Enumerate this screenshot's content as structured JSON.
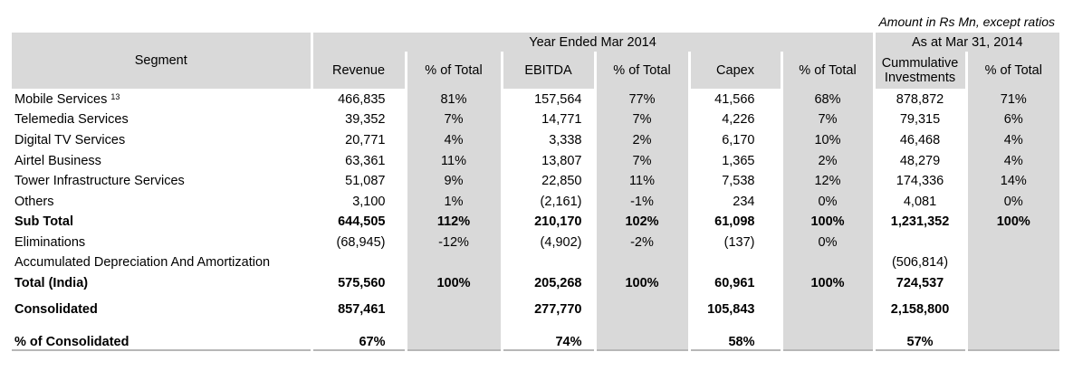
{
  "note": "Amount in Rs Mn, except ratios",
  "headers": {
    "segment": "Segment",
    "group1": "Year Ended Mar 2014",
    "group2": "As at Mar 31, 2014",
    "revenue": "Revenue",
    "pct1": "% of Total",
    "ebitda": "EBITDA",
    "pct2": "% of Total",
    "capex": "Capex",
    "pct3": "% of Total",
    "invest": "Cummulative Investments",
    "pct4": "% of Total"
  },
  "rows": [
    {
      "segment": "Mobile Services",
      "sup": "13",
      "revenue": "466,835",
      "rev_pct": "81%",
      "ebitda": "157,564",
      "ebitda_pct": "77%",
      "capex": "41,566",
      "capex_pct": "68%",
      "invest": "878,872",
      "invest_pct": "71%"
    },
    {
      "segment": "Telemedia Services",
      "revenue": "39,352",
      "rev_pct": "7%",
      "ebitda": "14,771",
      "ebitda_pct": "7%",
      "capex": "4,226",
      "capex_pct": "7%",
      "invest": "79,315",
      "invest_pct": "6%"
    },
    {
      "segment": "Digital TV Services",
      "revenue": "20,771",
      "rev_pct": "4%",
      "ebitda": "3,338",
      "ebitda_pct": "2%",
      "capex": "6,170",
      "capex_pct": "10%",
      "invest": "46,468",
      "invest_pct": "4%"
    },
    {
      "segment": "Airtel Business",
      "revenue": "63,361",
      "rev_pct": "11%",
      "ebitda": "13,807",
      "ebitda_pct": "7%",
      "capex": "1,365",
      "capex_pct": "2%",
      "invest": "48,279",
      "invest_pct": "4%"
    },
    {
      "segment": "Tower Infrastructure Services",
      "revenue": "51,087",
      "rev_pct": "9%",
      "ebitda": "22,850",
      "ebitda_pct": "11%",
      "capex": "7,538",
      "capex_pct": "12%",
      "invest": "174,336",
      "invest_pct": "14%"
    },
    {
      "segment": "Others",
      "revenue": "3,100",
      "rev_pct": "1%",
      "ebitda": "(2,161)",
      "ebitda_pct": "-1%",
      "capex": "234",
      "capex_pct": "0%",
      "invest": "4,081",
      "invest_pct": "0%"
    },
    {
      "segment": "Sub Total",
      "revenue": "644,505",
      "rev_pct": "112%",
      "ebitda": "210,170",
      "ebitda_pct": "102%",
      "capex": "61,098",
      "capex_pct": "100%",
      "invest": "1,231,352",
      "invest_pct": "100%"
    },
    {
      "segment": "Eliminations",
      "revenue": "(68,945)",
      "rev_pct": "-12%",
      "ebitda": "(4,902)",
      "ebitda_pct": "-2%",
      "capex": "(137)",
      "capex_pct": "0%",
      "invest": "",
      "invest_pct": ""
    },
    {
      "segment": "Accumulated Depreciation And Amortization",
      "revenue": "",
      "rev_pct": "",
      "ebitda": "",
      "ebitda_pct": "",
      "capex": "",
      "capex_pct": "",
      "invest": "(506,814)",
      "invest_pct": ""
    },
    {
      "segment": "Total (India)",
      "revenue": "575,560",
      "rev_pct": "100%",
      "ebitda": "205,268",
      "ebitda_pct": "100%",
      "capex": "60,961",
      "capex_pct": "100%",
      "invest": "724,537",
      "invest_pct": ""
    },
    {
      "segment": "Consolidated",
      "revenue": "857,461",
      "rev_pct": "",
      "ebitda": "277,770",
      "ebitda_pct": "",
      "capex": "105,843",
      "capex_pct": "",
      "invest": "2,158,800",
      "invest_pct": ""
    },
    {
      "segment": "% of Consolidated",
      "revenue": "67%",
      "rev_pct": "",
      "ebitda": "74%",
      "ebitda_pct": "",
      "capex": "58%",
      "capex_pct": "",
      "invest": "57%",
      "invest_pct": ""
    }
  ]
}
